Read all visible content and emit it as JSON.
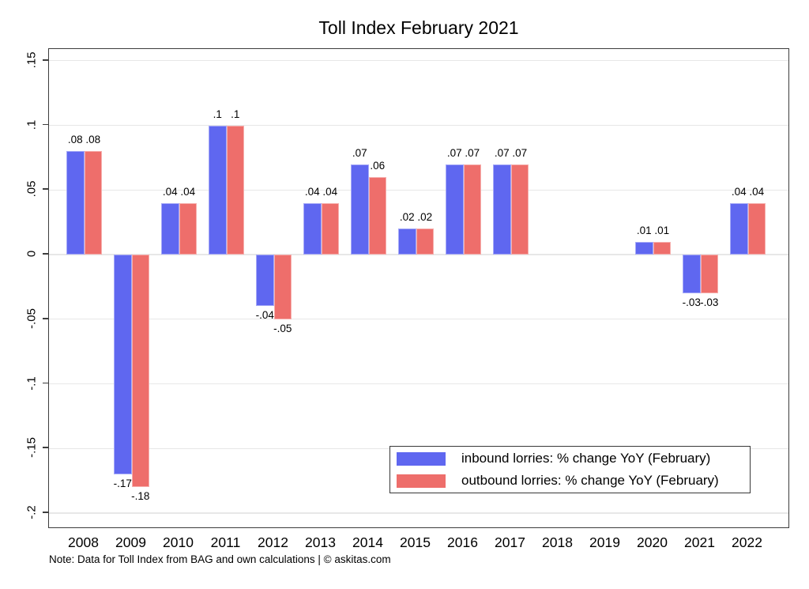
{
  "title": "Toll Index February 2021",
  "note": "Note: Data for Toll Index from BAG and own calculations | © askitas.com",
  "colors": {
    "inbound": "#5f67f0",
    "outbound": "#ee6e6b",
    "grid": "#e7e7e7",
    "axis": "#3d3d3d",
    "background": "#ffffff"
  },
  "legend": {
    "items": [
      {
        "label": "inbound lorries: % change YoY (February)"
      },
      {
        "label": "outbound lorries: % change YoY (February)"
      }
    ]
  },
  "chart_data": {
    "type": "bar",
    "title": "Toll Index February 2021",
    "categories": [
      "2008",
      "2009",
      "2010",
      "2011",
      "2012",
      "2013",
      "2014",
      "2015",
      "2016",
      "2017",
      "2018",
      "2019",
      "2020",
      "2021",
      "2022"
    ],
    "series": [
      {
        "name": "inbound lorries: % change YoY (February)",
        "values": [
          0.08,
          -0.17,
          0.04,
          0.1,
          -0.04,
          0.04,
          0.07,
          0.02,
          0.07,
          0.07,
          null,
          null,
          0.01,
          -0.03,
          0.04
        ],
        "labels": [
          ".08",
          "-.17",
          ".04",
          ".1",
          "-.04",
          ".04",
          ".07",
          ".02",
          ".07",
          ".07",
          null,
          null,
          ".01",
          "-.03",
          ".04"
        ]
      },
      {
        "name": "outbound lorries: % change YoY (February)",
        "values": [
          0.08,
          -0.18,
          0.04,
          0.1,
          -0.05,
          0.04,
          0.06,
          0.02,
          0.07,
          0.07,
          null,
          null,
          0.01,
          -0.03,
          0.04
        ],
        "labels": [
          ".08",
          "-.18",
          ".04",
          ".1",
          "-.05",
          ".04",
          ".06",
          ".02",
          ".07",
          ".07",
          null,
          null,
          ".01",
          "-.03",
          ".04"
        ]
      }
    ],
    "xlabel": "",
    "ylabel": "",
    "y_ticks": [
      0.15,
      0.1,
      0.05,
      0,
      -0.05,
      -0.1,
      -0.15,
      -0.2
    ],
    "y_tick_labels": [
      ".15",
      ".1",
      ".05",
      "0",
      "-.05",
      "-.1",
      "-.15",
      "-.2"
    ],
    "ylim": [
      -0.205,
      0.158
    ],
    "grid": true,
    "legend_position": "inside-bottom-right"
  }
}
